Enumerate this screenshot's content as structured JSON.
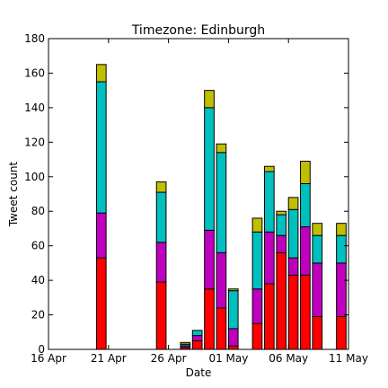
{
  "chart_data": {
    "type": "bar",
    "stacked": true,
    "title": "Timezone: Edinburgh",
    "xlabel": "Date",
    "ylabel": "Tweet count",
    "ylim": [
      0,
      180
    ],
    "yticks": [
      0,
      20,
      40,
      60,
      80,
      100,
      120,
      140,
      160,
      180
    ],
    "xlim": [
      "2016-04-16",
      "2016-05-11"
    ],
    "xticks": [
      "2016-04-16",
      "2016-04-21",
      "2016-04-26",
      "2016-05-01",
      "2016-05-06",
      "2016-05-11"
    ],
    "xtick_labels": [
      "16 Apr",
      "21 Apr",
      "26 Apr",
      "01 May",
      "06 May",
      "11 May"
    ],
    "grid": false,
    "series_colors": [
      "#ff0000",
      "#bf00bf",
      "#00bfbf",
      "#bfbf00"
    ],
    "categories": [
      "2016-04-20",
      "2016-04-25",
      "2016-04-27",
      "2016-04-28",
      "2016-04-29",
      "2016-04-30",
      "2016-05-01",
      "2016-05-03",
      "2016-05-04",
      "2016-05-05",
      "2016-05-06",
      "2016-05-07",
      "2016-05-08",
      "2016-05-10"
    ],
    "series": [
      {
        "values": [
          53,
          39,
          1,
          5,
          35,
          24,
          2,
          15,
          38,
          56,
          43,
          43,
          19,
          19
        ]
      },
      {
        "values": [
          26,
          23,
          1,
          3,
          34,
          32,
          10,
          20,
          30,
          10,
          10,
          28,
          31,
          31
        ]
      },
      {
        "values": [
          76,
          29,
          1,
          3,
          71,
          58,
          22,
          33,
          35,
          12,
          28,
          25,
          16,
          16
        ]
      },
      {
        "values": [
          10,
          6,
          1,
          0,
          10,
          5,
          1,
          8,
          3,
          2,
          7,
          13,
          7,
          7
        ]
      }
    ]
  }
}
